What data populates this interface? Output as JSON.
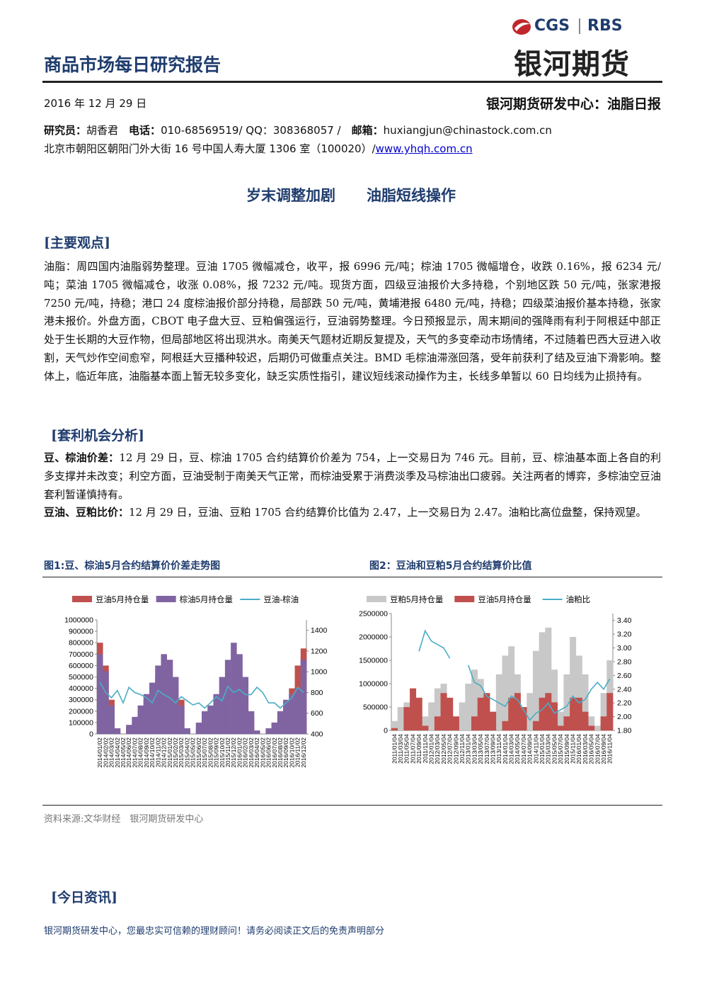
{
  "header": {
    "title": "商品市场每日研究报告",
    "logo_left": "CGS",
    "logo_right": "RBS",
    "brand": "银河期货"
  },
  "meta": {
    "date": "2016 年 12 月 29 日",
    "center": "银河期货研发中心：油脂日报",
    "researcher_label": "研究员：",
    "researcher": "胡香君",
    "phone_label": "电话：",
    "phone": "010-68569519/ QQ：308368057 /",
    "email_label": "邮箱：",
    "email": "huxiangjun@chinastock.com.cn",
    "address": "北京市朝阳区朝阳门外大街 16 号中国人寿大厦 1306 室（100020）/",
    "website": "www.yhqh.com.cn"
  },
  "headline": {
    "left": "岁末调整加剧",
    "right": "油脂短线操作"
  },
  "main_view": {
    "heading": "[主要观点]",
    "text": "油脂：周四国内油脂弱势整理。豆油 1705 微幅减仓，收平，报 6996 元/吨；棕油 1705 微幅增仓，收跌 0.16%，报 6234 元/吨；菜油 1705 微幅减仓，收涨 0.08%，报 7232 元/吨。现货方面，四级豆油报价大多持稳，个别地区跌 50 元/吨，张家港报 7250 元/吨，持稳；港口 24 度棕油报价部分持稳，局部跌 50 元/吨，黄埔港报 6480 元/吨，持稳；四级菜油报价基本持稳，张家港未报价。外盘方面，CBOT 电子盘大豆、豆粕偏强运行，豆油弱势整理。今日预报显示，周末期间的强降雨有利于阿根廷中部正处于生长期的大豆作物，但局部地区将出现洪水。南美天气题材近期反复提及，天气的多变牵动市场情绪，不过随着巴西大豆进入收割，天气炒作空间愈窄，阿根廷大豆播种较迟，后期仍可做重点关注。BMD 毛棕油滞涨回落，受年前获利了结及豆油下滑影响。整体上，临近年底，油脂基本面上暂无较多变化，缺乏实质性指引，建议短线滚动操作为主，长线多单暂以 60 日均线为止损持有。"
  },
  "arbitrage": {
    "heading": "[套利机会分析]",
    "items": [
      {
        "lead": "豆、棕油价差：",
        "text": "12 月 29 日，豆、棕油 1705 合约结算价价差为 754，上一交易日为 746 元。目前，豆、棕油基本面上各自的利多支撑并未改变；利空方面，豆油受制于南美天气正常，而棕油受累于消费淡季及马棕油出口疲弱。关注两者的博弈，多棕油空豆油套利暂谨慎持有。"
      },
      {
        "lead": "豆油、豆粕比价：",
        "text": "12 月 29 日，豆油、豆粕 1705 合约结算价比值为 2.47，上一交易日为 2.47。油粕比高位盘整，保持观望。"
      }
    ]
  },
  "figures": [
    {
      "caption": "图1:豆、棕油5月合约结算价价差走势图",
      "chart": {
        "type": "combo",
        "categories": [
          "2014/01/02",
          "2014/02/02",
          "2014/03/02",
          "2014/04/02",
          "2014/05/02",
          "2014/06/02",
          "2014/07/02",
          "2014/08/02",
          "2014/09/02",
          "2014/10/02",
          "2014/11/02",
          "2014/12/02",
          "2015/01/02",
          "2015/02/02",
          "2015/03/02",
          "2015/04/02",
          "2015/05/02",
          "2015/06/02",
          "2015/07/02",
          "2015/08/02",
          "2015/09/02",
          "2015/10/02",
          "2015/11/02",
          "2015/12/02",
          "2016/01/02",
          "2016/02/02",
          "2016/03/02",
          "2016/04/02",
          "2016/05/02",
          "2016/06/02",
          "2016/07/02",
          "2016/08/02",
          "2016/09/02",
          "2016/10/02",
          "2016/11/02",
          "2016/12/02"
        ],
        "series": [
          {
            "name": "豆油5月持仓量",
            "type": "bar",
            "color": "#c0504d",
            "values": [
              800000,
              600000,
              300000,
              50000,
              0,
              50000,
              100000,
              200000,
              300000,
              400000,
              500000,
              600000,
              650000,
              500000,
              300000,
              50000,
              0,
              50000,
              100000,
              150000,
              200000,
              300000,
              400000,
              500000,
              450000,
              350000,
              150000,
              30000,
              0,
              50000,
              100000,
              150000,
              250000,
              400000,
              600000,
              750000
            ]
          },
          {
            "name": "棕油5月持仓量",
            "type": "bar",
            "color": "#8064a2",
            "values": [
              700000,
              550000,
              250000,
              50000,
              0,
              80000,
              150000,
              250000,
              350000,
              450000,
              600000,
              700000,
              650000,
              500000,
              250000,
              50000,
              0,
              100000,
              200000,
              250000,
              350000,
              500000,
              650000,
              800000,
              700000,
              500000,
              200000,
              30000,
              0,
              50000,
              100000,
              200000,
              300000,
              350000,
              400000,
              650000
            ]
          },
          {
            "name": "豆油-棕油",
            "type": "line",
            "axis": "y2",
            "color": "#4bacc6",
            "values": [
              900,
              800,
              750,
              820,
              700,
              850,
              800,
              780,
              750,
              700,
              820,
              780,
              750,
              700,
              760,
              720,
              680,
              700,
              650,
              700,
              760,
              720,
              860,
              800,
              830,
              780,
              780,
              850,
              800,
              700,
              700,
              650,
              700,
              750,
              850,
              800
            ]
          }
        ],
        "ylim": [
          0,
          1000000
        ],
        "yticks": [
          0,
          100000,
          200000,
          300000,
          400000,
          500000,
          600000,
          700000,
          800000,
          900000,
          1000000
        ],
        "y2lim": [
          400,
          1500
        ],
        "y2ticks": [
          400,
          600,
          800,
          1000,
          1200,
          1400
        ]
      }
    },
    {
      "caption": "图2：豆油和豆粕5月合约结算价比值",
      "chart": {
        "type": "combo",
        "categories": [
          "2011/01/04",
          "2011/03/04",
          "2011/05/04",
          "2011/07/04",
          "2011/09/04",
          "2011/11/04",
          "2012/01/04",
          "2012/03/04",
          "2012/05/04",
          "2012/07/04",
          "2012/09/04",
          "2012/11/04",
          "2013/01/04",
          "2013/03/04",
          "2013/05/04",
          "2013/07/04",
          "2013/09/04",
          "2013/11/04",
          "2014/01/04",
          "2014/03/04",
          "2014/05/04",
          "2014/07/04",
          "2014/09/04",
          "2014/11/04",
          "2015/01/04",
          "2015/03/04",
          "2015/05/04",
          "2015/07/04",
          "2015/09/04",
          "2015/11/04",
          "2016/01/04",
          "2016/03/04",
          "2016/05/04",
          "2016/07/04",
          "2016/09/04",
          "2016/11/04"
        ],
        "series": [
          {
            "name": "豆粕5月持仓量",
            "type": "bar",
            "color": "#c8c8c8",
            "values": [
              200000,
              500000,
              600000,
              300000,
              100000,
              300000,
              600000,
              900000,
              1000000,
              400000,
              200000,
              600000,
              1000000,
              1300000,
              1100000,
              300000,
              400000,
              1200000,
              1600000,
              1800000,
              1200000,
              300000,
              800000,
              1700000,
              2100000,
              2200000,
              1300000,
              400000,
              1200000,
              2000000,
              1600000,
              1200000,
              300000,
              100000,
              800000,
              1500000
            ]
          },
          {
            "name": "豆油5月持仓量",
            "type": "bar",
            "color": "#c0504d",
            "values": [
              50000,
              0,
              500000,
              900000,
              700000,
              100000,
              0,
              300000,
              800000,
              700000,
              300000,
              0,
              0,
              300000,
              700000,
              800000,
              400000,
              0,
              200000,
              700000,
              800000,
              500000,
              0,
              200000,
              700000,
              800000,
              600000,
              100000,
              300000,
              700000,
              700000,
              400000,
              100000,
              0,
              300000,
              800000
            ]
          },
          {
            "name": "油粕比",
            "type": "line",
            "axis": "y2",
            "color": "#4bacc6",
            "values": [
              null,
              null,
              null,
              null,
              2.95,
              3.25,
              3.1,
              3.05,
              3.0,
              2.85,
              null,
              null,
              2.75,
              2.5,
              2.45,
              2.3,
              2.25,
              2.2,
              2.15,
              2.3,
              2.25,
              2.1,
              1.95,
              2.05,
              2.1,
              2.2,
              2.05,
              2.1,
              2.15,
              2.3,
              2.2,
              2.25,
              2.4,
              2.5,
              2.4,
              2.55
            ]
          }
        ],
        "ylim": [
          0,
          2500000
        ],
        "yticks": [
          0,
          500000,
          1000000,
          1500000,
          2000000,
          2500000
        ],
        "y2lim": [
          1.8,
          3.5
        ],
        "y2ticks": [
          {
            "value": 1.8,
            "label": "1.80"
          },
          {
            "value": 2.0,
            "label": "2.00"
          },
          {
            "value": 2.2,
            "label": "2.20"
          },
          {
            "value": 2.4,
            "label": "2.40"
          },
          {
            "value": 2.6,
            "label": "2.60"
          },
          {
            "value": 2.8,
            "label": "2.80"
          },
          {
            "value": 3.0,
            "label": "3.00"
          },
          {
            "value": 3.2,
            "label": "3.20"
          },
          {
            "value": 3.4,
            "label": "3.40"
          }
        ]
      }
    }
  ],
  "source": "资料来源:文华财经　银河期货研发中心",
  "news": {
    "heading": "[今日资讯]"
  },
  "footer": "银河期货研发中心，您最忠实可信赖的理财顾问！请务必阅读正文后的免责声明部分"
}
